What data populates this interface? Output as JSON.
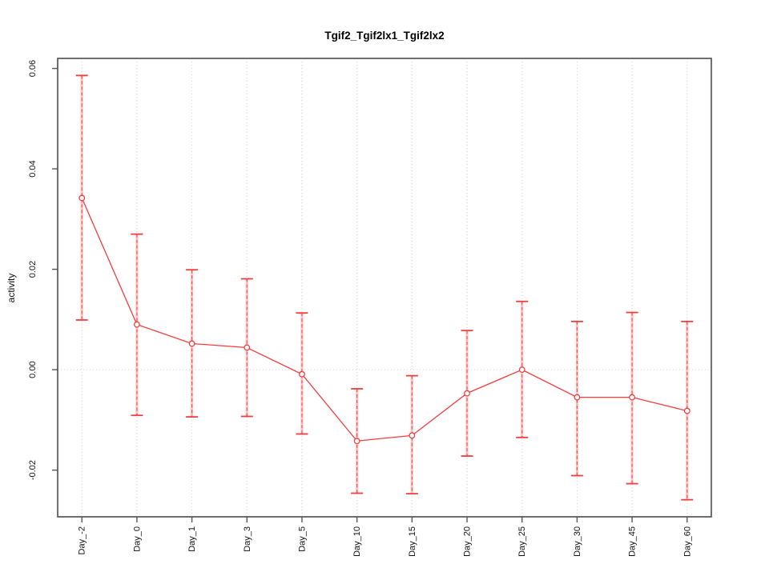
{
  "page": {
    "background": "#ffffff"
  },
  "chart_data": {
    "type": "line",
    "title": "Tgif2_Tgif2lx1_Tgif2lx2",
    "xlabel": "",
    "ylabel": "activity",
    "categories": [
      "Day_-2",
      "Day_0",
      "Day_1",
      "Day_3",
      "Day_5",
      "Day_10",
      "Day_15",
      "Day_20",
      "Day_25",
      "Day_30",
      "Day_45",
      "Day_60"
    ],
    "series": [
      {
        "name": "activity",
        "values": [
          0.0342,
          0.009,
          0.0052,
          0.0044,
          -0.0009,
          -0.0142,
          -0.0131,
          -0.0047,
          0.0,
          -0.0055,
          -0.0055,
          -0.0082
        ],
        "upper": [
          0.0586,
          0.027,
          0.0199,
          0.0181,
          0.0113,
          -0.0038,
          -0.0012,
          0.0078,
          0.0136,
          0.0096,
          0.0114,
          0.0096
        ],
        "lower": [
          0.0099,
          -0.0091,
          -0.0094,
          -0.0093,
          -0.0128,
          -0.0246,
          -0.0247,
          -0.0172,
          -0.0135,
          -0.0211,
          -0.0227,
          -0.0259
        ]
      }
    ],
    "error_bars": true,
    "point_style": "open-circle",
    "yticks": [
      -0.02,
      0.0,
      0.02,
      0.04,
      0.06
    ],
    "ytick_labels": [
      "-0.02",
      "0.00",
      "0.02",
      "0.04",
      "0.06"
    ],
    "ylim": [
      -0.0293,
      0.062
    ],
    "grid": {
      "vertical_at_categories": true,
      "horizontal_at_zero": true,
      "style": "dotted"
    },
    "legend_position": "none",
    "colors": {
      "series": "#f23d3d",
      "series_soft": "rgba(255,70,70,0.30)",
      "grid": "#cfcfcf",
      "axis": "#555555",
      "text": "#111111",
      "background": "#ffffff"
    }
  }
}
